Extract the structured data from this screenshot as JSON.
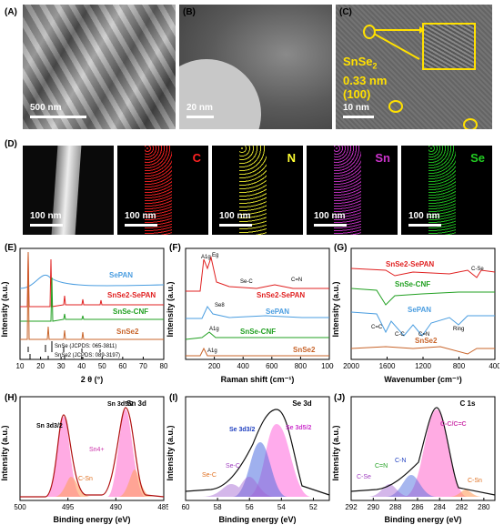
{
  "figure": {
    "panel_labels": [
      "(A)",
      "(B)",
      "(C)",
      "(D)",
      "(E)",
      "(F)",
      "(G)",
      "(H)",
      "(I)",
      "(J)"
    ],
    "A": {
      "scale": "500 nm"
    },
    "B": {
      "scale": "20 nm"
    },
    "C": {
      "scale": "10 nm",
      "phase": "SnSe",
      "phase_sub": "2",
      "spacing": "0.33 nm",
      "plane": "(100)"
    },
    "D": {
      "scale": "100 nm",
      "elements": [
        {
          "name": "C",
          "color": "#ff2222"
        },
        {
          "name": "N",
          "color": "#ffff33"
        },
        {
          "name": "Sn",
          "color": "#cc33cc"
        },
        {
          "name": "Se",
          "color": "#22cc22"
        }
      ]
    }
  },
  "chart_data": [
    {
      "panel": "E",
      "type": "line",
      "xlabel": "2 θ (°)",
      "ylabel": "Intensity (a.u.)",
      "xlim": [
        10,
        80
      ],
      "xticks": [
        10,
        20,
        30,
        40,
        50,
        60,
        70,
        80
      ],
      "series": [
        {
          "name": "SePAN",
          "color": "#4a9de0"
        },
        {
          "name": "SnSe2-SePAN",
          "color": "#e02020"
        },
        {
          "name": "SnSe-CNF",
          "color": "#22a022"
        },
        {
          "name": "SnSe2",
          "color": "#c8642a"
        }
      ],
      "references": [
        "SnSe (JCPDS: 065-3811)",
        "SnSe2 (JCPDS: 089-3197)"
      ]
    },
    {
      "panel": "F",
      "type": "line",
      "xlabel": "Raman shift (cm⁻¹)",
      "ylabel": "Intensity (a.u.)",
      "xlim": [
        0,
        1000
      ],
      "xticks": [
        200,
        400,
        600,
        800,
        1000
      ],
      "series": [
        {
          "name": "SnSe2-SePAN",
          "color": "#e02020"
        },
        {
          "name": "SePAN",
          "color": "#4a9de0"
        },
        {
          "name": "SnSe-CNF",
          "color": "#22a022"
        },
        {
          "name": "SnSe2",
          "color": "#c8642a"
        }
      ],
      "annotations": [
        "A1g",
        "Eg",
        "Se-C",
        "C=N",
        "Se8",
        "A1g",
        "A1g"
      ]
    },
    {
      "panel": "G",
      "type": "line",
      "xlabel": "Wavenumber (cm⁻¹)",
      "ylabel": "Intensity (a.u.)",
      "xlim": [
        2000,
        400
      ],
      "xticks": [
        2000,
        1600,
        1200,
        800,
        400
      ],
      "series": [
        {
          "name": "SnSe2-SePAN",
          "color": "#e02020"
        },
        {
          "name": "SnSe-CNF",
          "color": "#22a022"
        },
        {
          "name": "SePAN",
          "color": "#4a9de0"
        },
        {
          "name": "SnSe2",
          "color": "#c8642a"
        }
      ],
      "annotations": [
        "C-Se",
        "C=C",
        "C-C",
        "C=N",
        "Ring"
      ]
    },
    {
      "panel": "H",
      "type": "line",
      "title": "Sn 3d",
      "xlabel": "Binding energy (eV)",
      "ylabel": "Intensity (a.u.)",
      "xlim": [
        500,
        485
      ],
      "xticks": [
        500,
        495,
        490,
        485
      ],
      "peaks": [
        {
          "label": "Sn 3d3/2",
          "center": 495.2
        },
        {
          "label": "Sn 3d5/2",
          "center": 486.8
        }
      ],
      "components": [
        "Sn4+",
        "C-Sn"
      ]
    },
    {
      "panel": "I",
      "type": "line",
      "title": "Se 3d",
      "xlabel": "Binding energy (eV)",
      "ylabel": "Intensity (a.u.)",
      "xlim": [
        60,
        51
      ],
      "xticks": [
        60,
        58,
        56,
        54,
        52
      ],
      "components": [
        "Se 3d3/2",
        "Se 3d5/2",
        "Se-C",
        "Se-C"
      ]
    },
    {
      "panel": "J",
      "type": "line",
      "title": "C 1s",
      "xlabel": "Binding energy (eV)",
      "ylabel": "Intensity (a.u.)",
      "xlim": [
        292,
        279
      ],
      "xticks": [
        292,
        290,
        288,
        286,
        284,
        282,
        280
      ],
      "components": [
        "C-C/C=C",
        "C-N",
        "C=N",
        "C-Se",
        "C-Sn"
      ]
    }
  ]
}
